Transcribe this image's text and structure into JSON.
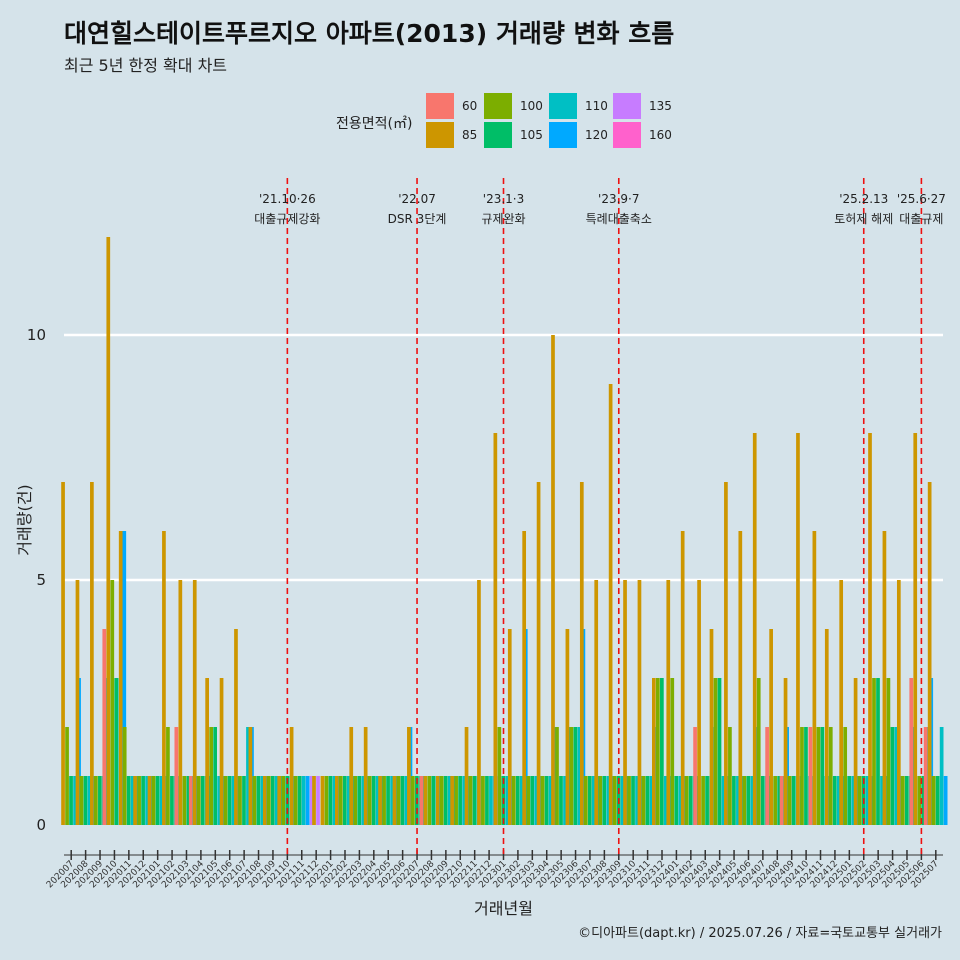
{
  "header": {
    "title": "대연힐스테이트푸르지오 아파트(2013) 거래량 변화 흐름",
    "subtitle": "최근 5년 한정 확대 차트"
  },
  "legend": {
    "title": "전용면적(㎡)",
    "items": [
      {
        "label": "60",
        "color": "#f8766d"
      },
      {
        "label": "85",
        "color": "#cd9600"
      },
      {
        "label": "100",
        "color": "#7cae00"
      },
      {
        "label": "105",
        "color": "#00be67"
      },
      {
        "label": "110",
        "color": "#00bfc4"
      },
      {
        "label": "120",
        "color": "#00a9ff"
      },
      {
        "label": "135",
        "color": "#c77cff"
      },
      {
        "label": "160",
        "color": "#ff61cc"
      }
    ]
  },
  "footer": "©디아파트(dapt.kr) / 2025.07.26 / 자료=국토교통부 실거래가",
  "chart_data": {
    "type": "bar",
    "title": "대연힐스테이트푸르지오 아파트(2013) 거래량 변화 흐름",
    "xlabel": "거래년월",
    "ylabel": "거래량(건)",
    "ylim": [
      -0.5,
      12.5
    ],
    "yticks": [
      0,
      5,
      10
    ],
    "categories": [
      "202007",
      "202008",
      "202009",
      "202010",
      "202011",
      "202012",
      "202101",
      "202102",
      "202103",
      "202104",
      "202105",
      "202106",
      "202107",
      "202108",
      "202109",
      "202110",
      "202111",
      "202112",
      "202201",
      "202202",
      "202203",
      "202204",
      "202205",
      "202206",
      "202207",
      "202208",
      "202209",
      "202210",
      "202211",
      "202212",
      "202301",
      "202302",
      "202303",
      "202304",
      "202305",
      "202306",
      "202307",
      "202308",
      "202309",
      "202310",
      "202311",
      "202312",
      "202401",
      "202402",
      "202403",
      "202404",
      "202405",
      "202406",
      "202407",
      "202408",
      "202409",
      "202410",
      "202411",
      "202412",
      "202501",
      "202502",
      "202503",
      "202504",
      "202505",
      "202506",
      "202507"
    ],
    "events": [
      {
        "label1": "'21.10·26",
        "label2": "대출규제강화",
        "index": 15
      },
      {
        "label1": "'22.07",
        "label2": "DSR 3단계",
        "index": 24
      },
      {
        "label1": "'23.1·3",
        "label2": "규제완화",
        "index": 30
      },
      {
        "label1": "'23.9·7",
        "label2": "특례대출축소",
        "index": 38
      },
      {
        "label1": "'25.2.13",
        "label2": "토허제 해제",
        "index": 55
      },
      {
        "label1": "'25.6·27",
        "label2": "대출규제",
        "index": 59
      }
    ],
    "series": [
      {
        "name": "60",
        "color": "#f8766d",
        "values": [
          0,
          0,
          0,
          4,
          0,
          0,
          0,
          0,
          2,
          1,
          0,
          0,
          0,
          0,
          0,
          0,
          0,
          0,
          0,
          0,
          0,
          0,
          0,
          0,
          0,
          1,
          0,
          0,
          0,
          0,
          0,
          0,
          0,
          0,
          0,
          0,
          0,
          0,
          0,
          0,
          0,
          0,
          0,
          0,
          2,
          0,
          0,
          0,
          0,
          2,
          1,
          0,
          2,
          0,
          0,
          0,
          0,
          0,
          0,
          3,
          2
        ]
      },
      {
        "name": "85",
        "color": "#cd9600",
        "values": [
          7,
          5,
          7,
          12,
          6,
          1,
          1,
          6,
          5,
          5,
          3,
          3,
          4,
          2,
          1,
          1,
          2,
          1,
          1,
          1,
          2,
          2,
          1,
          1,
          2,
          1,
          1,
          1,
          2,
          5,
          8,
          4,
          6,
          7,
          10,
          4,
          7,
          5,
          9,
          5,
          5,
          3,
          5,
          6,
          5,
          4,
          7,
          6,
          8,
          4,
          3,
          8,
          6,
          4,
          5,
          3,
          8,
          6,
          5,
          8,
          7
        ]
      },
      {
        "name": "100",
        "color": "#7cae00",
        "values": [
          2,
          1,
          1,
          5,
          2,
          1,
          1,
          2,
          1,
          1,
          2,
          1,
          1,
          1,
          1,
          1,
          1,
          0,
          1,
          1,
          1,
          1,
          1,
          1,
          1,
          1,
          1,
          1,
          1,
          1,
          2,
          1,
          1,
          1,
          2,
          2,
          1,
          1,
          1,
          1,
          1,
          3,
          3,
          1,
          1,
          3,
          2,
          1,
          3,
          1,
          1,
          2,
          2,
          2,
          2,
          1,
          3,
          3,
          1,
          1,
          1
        ]
      },
      {
        "name": "105",
        "color": "#00be67",
        "values": [
          1,
          1,
          1,
          3,
          1,
          1,
          1,
          1,
          1,
          1,
          2,
          1,
          1,
          1,
          1,
          1,
          1,
          0,
          1,
          1,
          1,
          1,
          1,
          1,
          1,
          1,
          1,
          1,
          1,
          1,
          1,
          1,
          1,
          1,
          1,
          2,
          1,
          1,
          1,
          1,
          1,
          3,
          1,
          1,
          1,
          3,
          1,
          1,
          1,
          1,
          1,
          2,
          2,
          1,
          1,
          1,
          3,
          2,
          1,
          1,
          1
        ]
      },
      {
        "name": "110",
        "color": "#00bfc4",
        "values": [
          1,
          1,
          1,
          3,
          1,
          1,
          1,
          1,
          1,
          1,
          1,
          1,
          2,
          1,
          1,
          1,
          1,
          0,
          1,
          1,
          1,
          1,
          1,
          1,
          1,
          1,
          1,
          1,
          1,
          1,
          1,
          1,
          1,
          1,
          1,
          2,
          1,
          1,
          1,
          1,
          1,
          1,
          1,
          1,
          1,
          1,
          1,
          1,
          1,
          1,
          1,
          1,
          1,
          1,
          1,
          1,
          1,
          2,
          1,
          2,
          2
        ]
      },
      {
        "name": "120",
        "color": "#00a9ff",
        "values": [
          3,
          1,
          3,
          6,
          1,
          1,
          1,
          1,
          1,
          1,
          1,
          1,
          2,
          1,
          1,
          1,
          1,
          0,
          1,
          1,
          1,
          1,
          1,
          2,
          1,
          1,
          1,
          1,
          1,
          1,
          1,
          4,
          1,
          2,
          2,
          4,
          1,
          1,
          1,
          1,
          2,
          1,
          1,
          1,
          2,
          1,
          1,
          2,
          1,
          2,
          1,
          1,
          1,
          1,
          1,
          1,
          1,
          1,
          2,
          3,
          1
        ]
      },
      {
        "name": "135",
        "color": "#c77cff",
        "values": [
          0,
          0,
          0,
          0,
          0,
          0,
          0,
          0,
          0,
          0,
          0,
          0,
          0,
          0,
          0,
          0,
          1,
          1,
          0,
          0,
          0,
          0,
          0,
          0,
          0,
          0,
          0,
          0,
          0,
          1,
          0,
          0,
          0,
          0,
          0,
          0,
          0,
          0,
          0,
          0,
          0,
          0,
          0,
          0,
          0,
          0,
          0,
          0,
          0,
          0,
          0,
          0,
          0,
          0,
          0,
          0,
          0,
          0,
          0,
          0,
          0
        ]
      },
      {
        "name": "160",
        "color": "#ff61cc",
        "values": [
          0,
          0,
          0,
          0,
          0,
          0,
          0,
          0,
          0,
          0,
          0,
          0,
          0,
          0,
          0,
          0,
          0,
          0,
          0,
          0,
          0,
          0,
          0,
          0,
          0,
          0,
          0,
          0,
          0,
          0,
          0,
          0,
          0,
          0,
          0,
          0,
          0,
          0,
          0,
          0,
          0,
          0,
          0,
          0,
          0,
          0,
          0,
          0,
          0,
          0,
          0,
          0,
          0,
          0,
          0,
          0,
          0,
          0,
          0,
          0,
          0
        ]
      }
    ]
  }
}
